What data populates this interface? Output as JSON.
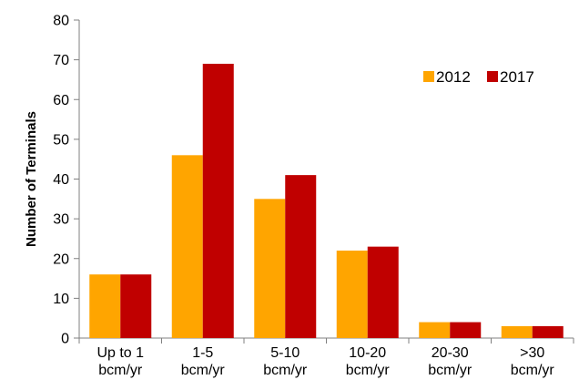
{
  "chart_data": {
    "type": "bar",
    "categories": [
      [
        "Up to 1",
        "bcm/yr"
      ],
      [
        "1-5",
        "bcm/yr"
      ],
      [
        "5-10",
        "bcm/yr"
      ],
      [
        "10-20",
        "bcm/yr"
      ],
      [
        "20-30",
        "bcm/yr"
      ],
      [
        ">30",
        "bcm/yr"
      ]
    ],
    "series": [
      {
        "name": "2012",
        "color": "#FFA500",
        "values": [
          16,
          46,
          35,
          22,
          4,
          3
        ]
      },
      {
        "name": "2017",
        "color": "#C00000",
        "values": [
          16,
          69,
          41,
          23,
          4,
          3
        ]
      }
    ],
    "xlabel": "",
    "ylabel": "Number of Terminals",
    "ylim": [
      0,
      80
    ],
    "yticks": [
      0,
      10,
      20,
      30,
      40,
      50,
      60,
      70,
      80
    ],
    "grid": false,
    "legend_position": "top-right"
  }
}
